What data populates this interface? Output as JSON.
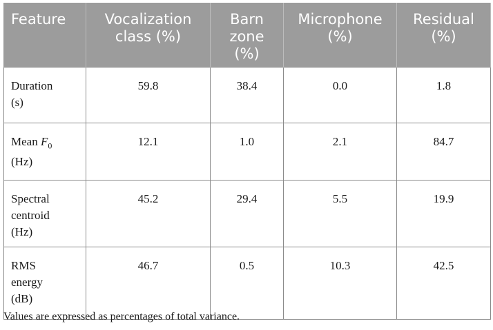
{
  "table": {
    "headers": [
      "Feature",
      "Vocalization class (%)",
      "Barn zone (%)",
      "Microphone (%)",
      "Residual (%)"
    ],
    "rows": [
      {
        "feature_main": "Duration",
        "feature_unit": "(s)",
        "values": [
          "59.8",
          "38.4",
          "0.0",
          "1.8"
        ]
      },
      {
        "feature_main": "Mean",
        "feature_symbol": "F",
        "feature_subscript": "0",
        "feature_unit": "(Hz)",
        "values": [
          "12.1",
          "1.0",
          "2.1",
          "84.7"
        ]
      },
      {
        "feature_main": "Spectral centroid",
        "feature_unit": "(Hz)",
        "values": [
          "45.2",
          "29.4",
          "5.5",
          "19.9"
        ]
      },
      {
        "feature_main": "RMS energy",
        "feature_unit": "(dB)",
        "values": [
          "46.7",
          "0.5",
          "10.3",
          "42.5"
        ]
      }
    ]
  },
  "footnote": "Values are expressed as percentages of total variance."
}
